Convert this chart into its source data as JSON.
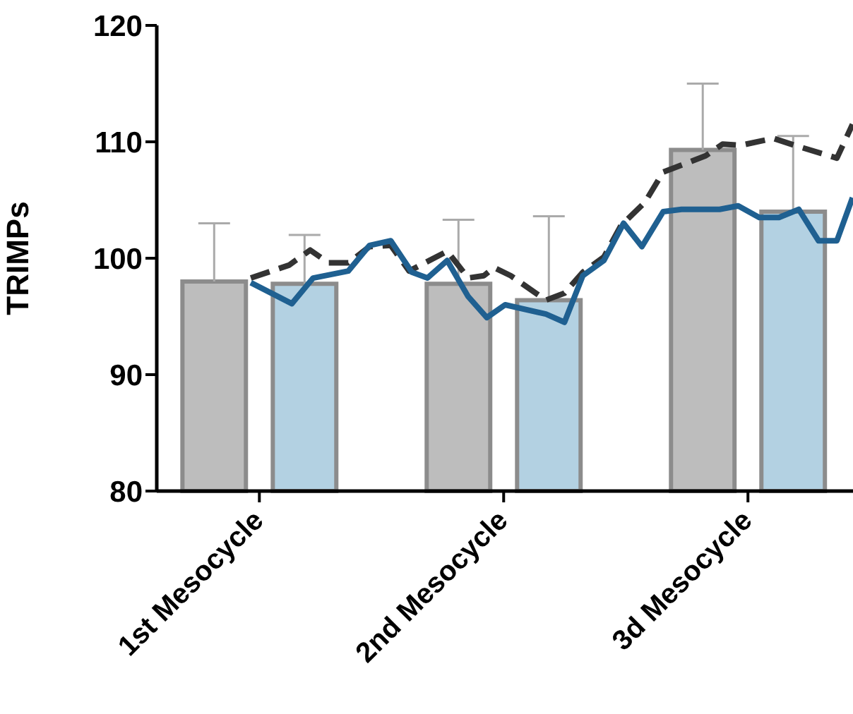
{
  "chart_data": {
    "type": "bar",
    "ylabel": "TRIMPs",
    "xlim": [
      0.58,
      3.43
    ],
    "xticks": [
      {
        "value": 1,
        "label": "1st Mesocycle"
      },
      {
        "value": 2,
        "label": "2nd Mesocycle"
      },
      {
        "value": 3,
        "label": "3d Mesocycle"
      }
    ],
    "ylim": [
      80,
      120
    ],
    "yticks": [
      80,
      90,
      100,
      110,
      120
    ],
    "grid": false,
    "series": [
      {
        "color": "#bdbdbd",
        "x": [
          1,
          2,
          3
        ],
        "values": [
          98,
          97.8,
          109.3
        ],
        "errors": [
          [
            98,
            103
          ],
          [
            97.8,
            103.3
          ],
          [
            109.3,
            115
          ]
        ]
      },
      {
        "color": "#b3d1e2",
        "x": [
          1,
          2,
          3
        ],
        "values": [
          97.8,
          96.4,
          104
        ],
        "errors": [
          [
            97.8,
            102
          ],
          [
            96.4,
            103.6
          ],
          [
            104,
            110.5
          ]
        ]
      },
      {
        "type": "line",
        "color": "#333333",
        "line_style": "dashed",
        "x": [
          0.965,
          1.121,
          1.208,
          1.283,
          1.364,
          1.451,
          1.538,
          1.613,
          1.769,
          1.855,
          1.919,
          1.96,
          2.029,
          2.173,
          2.249,
          2.324,
          2.41,
          2.48,
          2.578,
          2.653,
          2.827,
          2.896,
          2.971,
          3.104,
          3.191,
          3.364,
          3.428
        ],
        "values": [
          98.3,
          99.4,
          100.7,
          99.6,
          99.6,
          101,
          101.1,
          98.9,
          100.6,
          98.3,
          98.5,
          99.2,
          98.5,
          96.4,
          97,
          98.8,
          100.1,
          102.8,
          104.8,
          107.4,
          108.8,
          109.8,
          109.7,
          110.3,
          109.7,
          108.6,
          111.5
        ]
      },
      {
        "type": "line",
        "color": "#1f6091",
        "line_style": "solid",
        "x": [
          0.965,
          1.133,
          1.22,
          1.364,
          1.451,
          1.538,
          1.624,
          1.688,
          1.769,
          1.855,
          1.931,
          2.006,
          2.173,
          2.249,
          2.324,
          2.41,
          2.491,
          2.566,
          2.653,
          2.728,
          2.884,
          2.96,
          3.046,
          3.127,
          3.208,
          3.289,
          3.364,
          3.428
        ],
        "values": [
          97.9,
          96.1,
          98.3,
          98.9,
          101.1,
          101.5,
          98.8,
          98.3,
          99.8,
          96.7,
          94.9,
          96,
          95.2,
          94.5,
          98.5,
          99.8,
          103,
          101,
          104,
          104.2,
          104.2,
          104.5,
          103.5,
          103.5,
          104.2,
          101.5,
          101.5,
          105.2
        ]
      }
    ]
  }
}
